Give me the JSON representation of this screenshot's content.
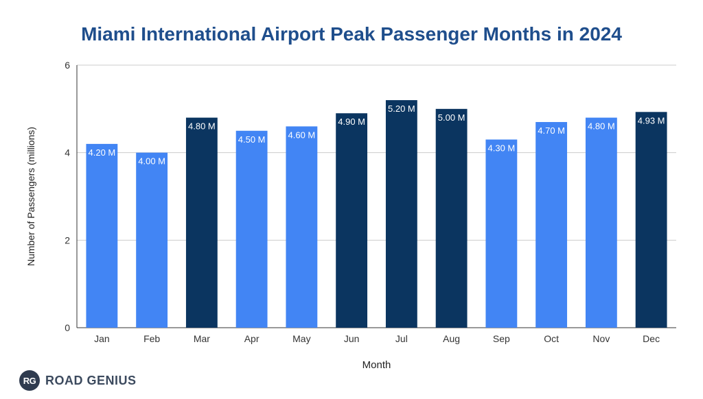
{
  "logo": {
    "badge": "RG",
    "text": "ROAD GENIUS"
  },
  "colors": {
    "light": "#4285f4",
    "dark": "#0b3560",
    "title": "#1f4e8c"
  },
  "chart_data": {
    "type": "bar",
    "title": "Miami International Airport Peak Passenger Months in 2024",
    "xlabel": "Month",
    "ylabel": "Number of Passengers (millions)",
    "ylim": [
      0,
      6
    ],
    "yticks": [
      0,
      2,
      4,
      6
    ],
    "grid": true,
    "categories": [
      "Jan",
      "Feb",
      "Mar",
      "Apr",
      "May",
      "Jun",
      "Jul",
      "Aug",
      "Sep",
      "Oct",
      "Nov",
      "Dec"
    ],
    "values": [
      4.2,
      4.0,
      4.8,
      4.5,
      4.6,
      4.9,
      5.2,
      5.0,
      4.3,
      4.7,
      4.8,
      4.93
    ],
    "labels": [
      "4.20 M",
      "4.00 M",
      "4.80 M",
      "4.50 M",
      "4.60 M",
      "4.90 M",
      "5.20 M",
      "5.00 M",
      "4.30 M",
      "4.70 M",
      "4.80 M",
      "4.93 M"
    ],
    "highlight": [
      false,
      false,
      true,
      false,
      false,
      true,
      true,
      true,
      false,
      false,
      false,
      true
    ]
  }
}
